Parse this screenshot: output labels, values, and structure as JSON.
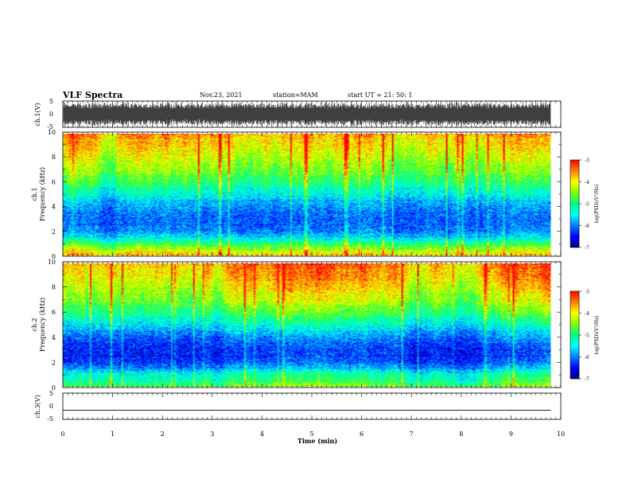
{
  "header": {
    "title": "VLF Spectra",
    "date": "Nov.23, 2021",
    "station": "station=MAM",
    "start": "start UT =  21: 50: 1"
  },
  "colors": {
    "colormap": [
      "#000080",
      "#0000ff",
      "#0080ff",
      "#00ffff",
      "#00ff80",
      "#80ff00",
      "#ffff00",
      "#ff8000",
      "#ff0000"
    ],
    "waveform": "#000000",
    "axes": "#000000",
    "background": "#ffffff"
  },
  "chart_data": [
    {
      "type": "line",
      "ylabel": "ch.1(V)",
      "ylim": [
        -5,
        5
      ],
      "yticks": [
        "5",
        "0",
        "-5"
      ],
      "xlim": [
        0,
        10
      ],
      "description_visible": "dense noise-like waveform spanning roughly -5 to 5 V"
    },
    {
      "type": "heatmap",
      "ylabel": "ch.1\nFrequency (kHz)",
      "ylim": [
        0,
        10
      ],
      "yticks": [
        "0",
        "2",
        "4",
        "6",
        "8",
        "10"
      ],
      "xlim": [
        0,
        10
      ],
      "colorbar": {
        "label": "log(PSD)(V²/Hz)",
        "ticks": [
          "-3",
          "-4",
          "-5",
          "-6",
          "-7"
        ],
        "range": [
          -7,
          -3
        ]
      },
      "level_profile": {
        "freq_khz": [
          0,
          0.5,
          1,
          1.5,
          2,
          3,
          4,
          5,
          6,
          7,
          8,
          9,
          10
        ],
        "log_psd": [
          -3.8,
          -4.3,
          -5.0,
          -5.6,
          -6.0,
          -6.1,
          -5.9,
          -5.4,
          -4.9,
          -4.5,
          -4.2,
          -3.9,
          -3.6
        ]
      }
    },
    {
      "type": "heatmap",
      "ylabel": "ch.2\nFrequency (kHz)",
      "ylim": [
        0,
        10
      ],
      "yticks": [
        "0",
        "2",
        "4",
        "6",
        "8",
        "10"
      ],
      "xlim": [
        0,
        10
      ],
      "colorbar": {
        "label": "log(PSD)(V²/Hz)",
        "ticks": [
          "-3",
          "-4",
          "-5",
          "-6",
          "-7"
        ],
        "range": [
          -7,
          -3
        ]
      },
      "level_profile": {
        "freq_khz": [
          0,
          0.5,
          1,
          1.5,
          2,
          3,
          4,
          5,
          6,
          7,
          8,
          9,
          10
        ],
        "log_psd": [
          -4.6,
          -5.0,
          -5.2,
          -5.8,
          -6.2,
          -6.3,
          -6.0,
          -5.4,
          -4.8,
          -4.3,
          -4.0,
          -3.7,
          -3.5
        ]
      }
    },
    {
      "type": "line",
      "ylabel": "ch.3(V)",
      "ylim": [
        -5,
        5
      ],
      "yticks": [
        "5",
        "0",
        "-5"
      ],
      "xlim": [
        0,
        10
      ],
      "x": [
        0,
        9.8
      ],
      "y": [
        -1.5,
        -1.5
      ]
    }
  ],
  "xaxis": {
    "label": "Time (min)",
    "ticks": [
      "0",
      "1",
      "2",
      "3",
      "4",
      "5",
      "6",
      "7",
      "8",
      "9",
      "10"
    ],
    "range": [
      0,
      10
    ],
    "data_end": 9.8
  }
}
